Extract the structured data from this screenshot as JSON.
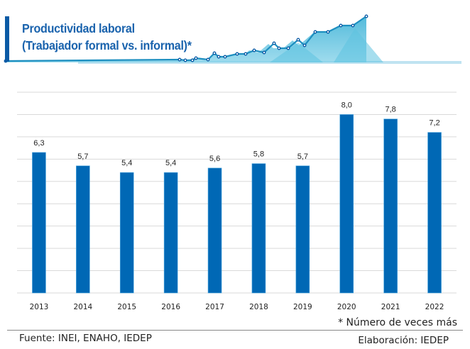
{
  "header": {
    "title_line1": "Productividad laboral",
    "title_line2": "(Trabajador formal vs. informal)*",
    "accent_color": "#0a5aa5",
    "title_color": "#1a63ad",
    "decoration": "rising-line-graph-banner"
  },
  "chart_data": {
    "type": "bar",
    "title": "Productividad laboral (Trabajador formal vs. informal)*",
    "xlabel": "",
    "ylabel": "",
    "categories": [
      "2013",
      "2014",
      "2015",
      "2016",
      "2017",
      "2018",
      "2019",
      "2020",
      "2021",
      "2022"
    ],
    "values": [
      6.3,
      5.7,
      5.4,
      5.4,
      5.6,
      5.8,
      5.7,
      8.0,
      7.8,
      7.2
    ],
    "value_labels": [
      "6,3",
      "5,7",
      "5,4",
      "5,4",
      "5,6",
      "5,8",
      "5,7",
      "8,0",
      "7,8",
      "7,2"
    ],
    "ylim": [
      0,
      9
    ],
    "grid": true,
    "y_tick_labels_visible": false,
    "legend": "none",
    "bar_color": "#0068b5",
    "grid_color": "#d9d9d9"
  },
  "footnote": "* Número de veces más",
  "source": "Fuente: INEI, ENAHO, IEDEP",
  "credit": "Elaboración: IEDEP"
}
